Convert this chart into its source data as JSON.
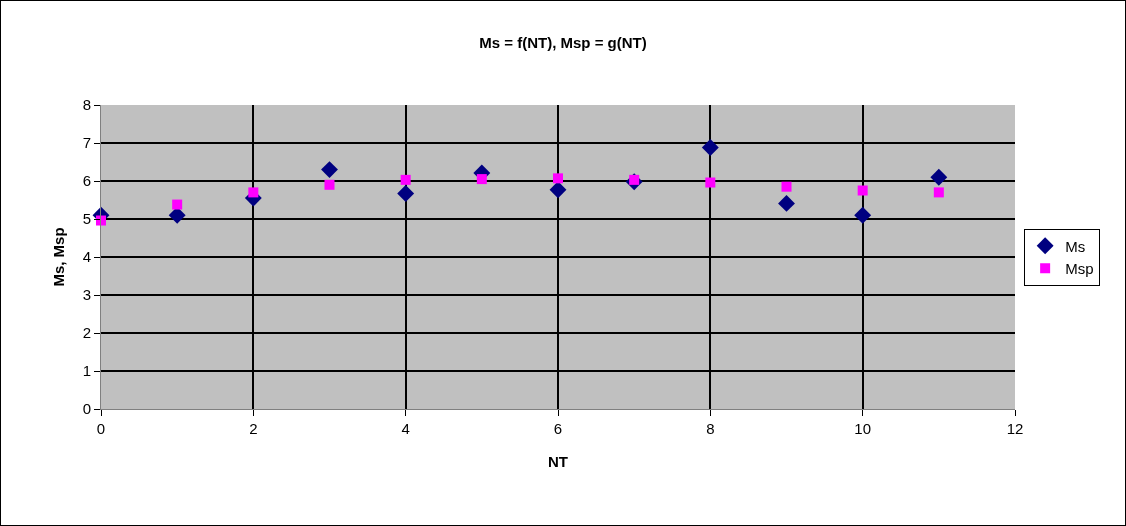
{
  "chart_data": {
    "type": "scatter",
    "title": "Ms = f(NT), Msp = g(NT)",
    "xlabel": "NT",
    "ylabel": "Ms, Msp",
    "x": [
      0,
      1,
      2,
      3,
      4,
      5,
      6,
      7,
      8,
      9,
      10,
      11
    ],
    "series": [
      {
        "name": "Ms",
        "color": "#000080",
        "marker": "diamond",
        "values": [
          5.1,
          5.1,
          5.55,
          6.3,
          5.67,
          6.21,
          5.77,
          5.98,
          6.88,
          5.41,
          5.1,
          6.1
        ]
      },
      {
        "name": "Msp",
        "color": "#ff00ff",
        "marker": "square",
        "values": [
          4.96,
          5.38,
          5.7,
          5.9,
          6.03,
          6.05,
          6.07,
          6.03,
          5.96,
          5.85,
          5.75,
          5.7
        ]
      }
    ],
    "xlim": [
      0,
      12
    ],
    "xticks": [
      0,
      2,
      4,
      6,
      8,
      10,
      12
    ],
    "ylim": [
      0,
      8
    ],
    "yticks": [
      0,
      1,
      2,
      3,
      4,
      5,
      6,
      7,
      8
    ],
    "grid": true,
    "legend": "right"
  }
}
